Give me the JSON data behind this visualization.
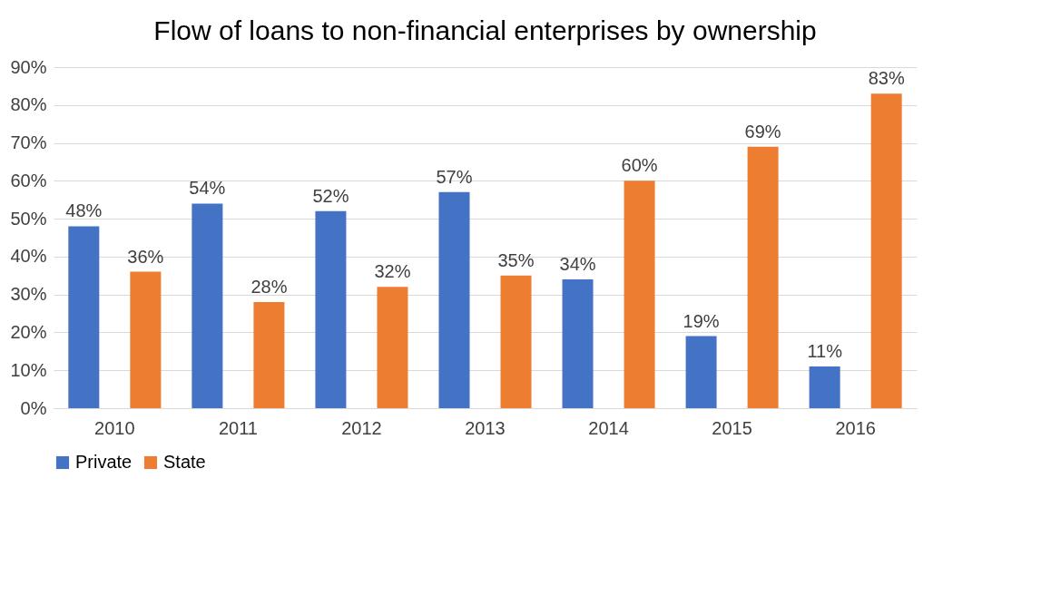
{
  "chart_data": {
    "type": "bar",
    "title": "Flow of loans to non-financial enterprises by ownership",
    "categories": [
      "2010",
      "2011",
      "2012",
      "2013",
      "2014",
      "2015",
      "2016"
    ],
    "series": [
      {
        "name": "Private",
        "color": "#4472c4",
        "values": [
          48,
          54,
          52,
          57,
          34,
          19,
          11
        ],
        "value_labels": [
          "48%",
          "54%",
          "52%",
          "57%",
          "34%",
          "19%",
          "11%"
        ]
      },
      {
        "name": "State",
        "color": "#ed7d31",
        "values": [
          36,
          28,
          32,
          35,
          60,
          69,
          83
        ],
        "value_labels": [
          "36%",
          "28%",
          "32%",
          "35%",
          "60%",
          "69%",
          "83%"
        ]
      }
    ],
    "ylim": [
      0,
      90
    ],
    "yticks": [
      {
        "value": 0,
        "label": "0%"
      },
      {
        "value": 10,
        "label": "10%"
      },
      {
        "value": 20,
        "label": "20%"
      },
      {
        "value": 30,
        "label": "30%"
      },
      {
        "value": 40,
        "label": "40%"
      },
      {
        "value": 50,
        "label": "50%"
      },
      {
        "value": 60,
        "label": "60%"
      },
      {
        "value": 70,
        "label": "70%"
      },
      {
        "value": 80,
        "label": "80%"
      },
      {
        "value": 90,
        "label": "90%"
      }
    ],
    "grid": "y",
    "legend": "bottom"
  }
}
